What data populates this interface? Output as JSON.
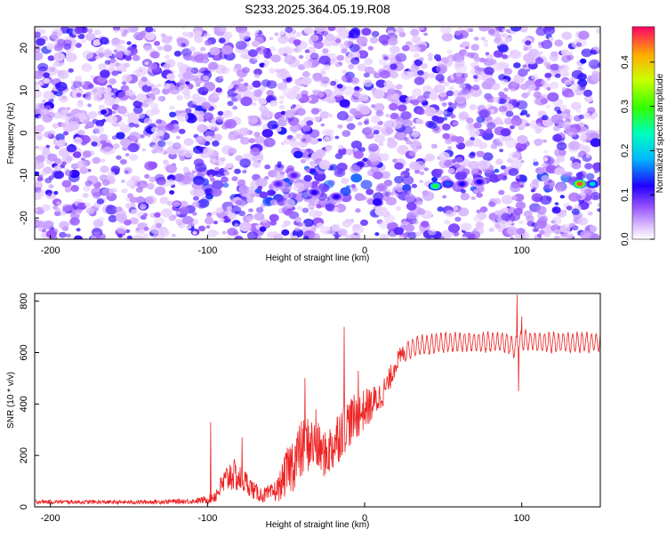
{
  "title": "S233.2025.364.05.19.R08",
  "colors": {
    "signal_line": "#ee2222",
    "axis": "#000000",
    "background": "#ffffff"
  },
  "chart_data": [
    {
      "type": "heatmap",
      "xlabel": "Height of straight line (km)",
      "ylabel": "Frequency (Hz)",
      "xlim": [
        -210,
        150
      ],
      "ylim": [
        -25,
        25
      ],
      "x_ticks": [
        "-200",
        "-100",
        "0",
        "100"
      ],
      "y_ticks": [
        "20",
        "10",
        "0",
        "-10",
        "-20"
      ],
      "colorbar": {
        "label": "Normalized spectral amplitude",
        "range": [
          0,
          0.48
        ],
        "ticks": [
          "0.0",
          "0.1",
          "0.2",
          "0.3",
          "0.4"
        ]
      },
      "features": [
        {
          "x": 45,
          "y": -12.5,
          "amplitude": 0.28
        },
        {
          "x": 53,
          "y": -12,
          "amplitude": 0.15
        },
        {
          "x": 62,
          "y": -12,
          "amplitude": 0.12
        },
        {
          "x": 73,
          "y": -11.5,
          "amplitude": 0.12
        },
        {
          "x": 137,
          "y": -12,
          "amplitude": 0.45
        },
        {
          "x": 145,
          "y": -12,
          "amplitude": 0.2
        },
        {
          "x": -18,
          "y": -15,
          "amplitude": 0.12
        },
        {
          "x": -32,
          "y": -14,
          "amplitude": 0.12
        },
        {
          "x": -45,
          "y": -10,
          "amplitude": 0.1
        },
        {
          "x": -55,
          "y": -12,
          "amplitude": 0.1
        }
      ]
    },
    {
      "type": "line",
      "xlabel": "Height of straight line (km)",
      "ylabel": "SNR (10 * v/v)",
      "xlim": [
        -210,
        150
      ],
      "ylim": [
        0,
        830
      ],
      "x_ticks": [
        "-200",
        "-100",
        "0",
        "100"
      ],
      "y_ticks": [
        "0",
        "200",
        "400",
        "600",
        "800"
      ],
      "series": [
        {
          "x": [
            -210,
            -150,
            -110,
            -100,
            -95,
            -90,
            -85,
            -80,
            -75,
            -70,
            -65,
            -60,
            -55,
            -50,
            -45,
            -40,
            -35,
            -30,
            -25,
            -20,
            -15,
            -10,
            -5,
            0,
            5,
            10,
            15,
            20,
            25,
            30,
            40,
            50,
            60,
            70,
            80,
            90,
            95,
            100,
            110,
            120,
            130,
            140,
            150
          ],
          "mean": [
            20,
            18,
            22,
            28,
            45,
            90,
            130,
            110,
            95,
            60,
            45,
            50,
            70,
            130,
            180,
            220,
            250,
            230,
            200,
            240,
            300,
            330,
            350,
            380,
            400,
            430,
            480,
            560,
            600,
            620,
            630,
            640,
            640,
            640,
            640,
            640,
            620,
            650,
            640,
            640,
            640,
            640,
            640
          ],
          "noise": [
            8,
            8,
            10,
            15,
            30,
            50,
            70,
            55,
            45,
            35,
            30,
            35,
            50,
            90,
            120,
            120,
            110,
            100,
            90,
            110,
            110,
            100,
            90,
            80,
            70,
            60,
            50,
            40,
            40,
            40,
            40,
            40,
            40,
            40,
            40,
            40,
            40,
            40,
            40,
            40,
            40,
            40,
            40
          ],
          "spikes": [
            [
              -98,
              330
            ],
            [
              -78,
              270
            ],
            [
              -38,
              500
            ],
            [
              -31,
              380
            ],
            [
              -13,
              700
            ],
            [
              -4,
              530
            ],
            [
              97,
              825
            ],
            [
              98,
              450
            ],
            [
              100,
              740
            ]
          ]
        }
      ]
    }
  ]
}
